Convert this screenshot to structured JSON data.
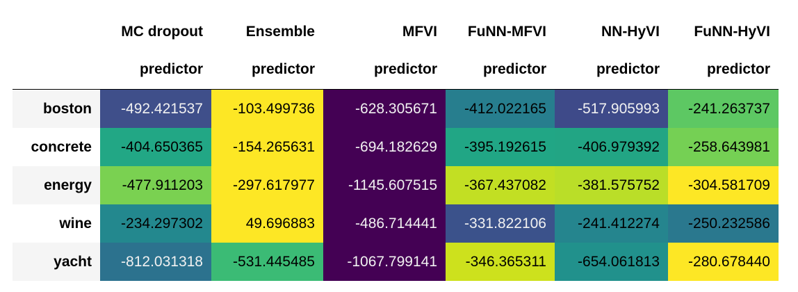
{
  "table": {
    "corner": "",
    "columns": [
      {
        "line1": "MC dropout",
        "line2": "predictor"
      },
      {
        "line1": "Ensemble",
        "line2": "predictor"
      },
      {
        "line1": "MFVI",
        "line2": "predictor"
      },
      {
        "line1": "FuNN-MFVI",
        "line2": "predictor"
      },
      {
        "line1": "NN-HyVI",
        "line2": "predictor"
      },
      {
        "line1": "FuNN-HyVI",
        "line2": "predictor"
      }
    ],
    "rows": [
      {
        "label": "boston",
        "cells": [
          {
            "text": "-492.421537",
            "bg": "#3f4f8a",
            "fg": "#f1f1f1"
          },
          {
            "text": "-103.499736",
            "bg": "#fde725",
            "fg": "#000000"
          },
          {
            "text": "-628.305671",
            "bg": "#440154",
            "fg": "#f1f1f1"
          },
          {
            "text": "-412.022165",
            "bg": "#277e8e",
            "fg": "#000000"
          },
          {
            "text": "-517.905993",
            "bg": "#3e4a89",
            "fg": "#f1f1f1"
          },
          {
            "text": "-241.263737",
            "bg": "#5dc863",
            "fg": "#000000"
          }
        ]
      },
      {
        "label": "concrete",
        "cells": [
          {
            "text": "-404.650365",
            "bg": "#22a785",
            "fg": "#000000"
          },
          {
            "text": "-154.265631",
            "bg": "#fde725",
            "fg": "#000000"
          },
          {
            "text": "-694.182629",
            "bg": "#440154",
            "fg": "#f1f1f1"
          },
          {
            "text": "-395.192615",
            "bg": "#21a685",
            "fg": "#000000"
          },
          {
            "text": "-406.979392",
            "bg": "#22a584",
            "fg": "#000000"
          },
          {
            "text": "-258.643981",
            "bg": "#75d054",
            "fg": "#000000"
          }
        ]
      },
      {
        "label": "energy",
        "cells": [
          {
            "text": "-477.911203",
            "bg": "#7ad151",
            "fg": "#000000"
          },
          {
            "text": "-297.617977",
            "bg": "#fde725",
            "fg": "#000000"
          },
          {
            "text": "-1145.607515",
            "bg": "#440154",
            "fg": "#f1f1f1"
          },
          {
            "text": "-367.437082",
            "bg": "#c2df23",
            "fg": "#000000"
          },
          {
            "text": "-381.575752",
            "bg": "#bade28",
            "fg": "#000000"
          },
          {
            "text": "-304.581709",
            "bg": "#fde725",
            "fg": "#000000"
          }
        ]
      },
      {
        "label": "wine",
        "cells": [
          {
            "text": "-234.297302",
            "bg": "#23888e",
            "fg": "#000000"
          },
          {
            "text": "49.696883",
            "bg": "#fde725",
            "fg": "#000000"
          },
          {
            "text": "-486.714441",
            "bg": "#440154",
            "fg": "#f1f1f1"
          },
          {
            "text": "-331.822106",
            "bg": "#3b528b",
            "fg": "#f1f1f1"
          },
          {
            "text": "-241.412274",
            "bg": "#25858e",
            "fg": "#000000"
          },
          {
            "text": "-250.232586",
            "bg": "#2a788e",
            "fg": "#000000"
          }
        ]
      },
      {
        "label": "yacht",
        "cells": [
          {
            "text": "-812.031318",
            "bg": "#2c728e",
            "fg": "#f1f1f1"
          },
          {
            "text": "-531.445485",
            "bg": "#3bbb75",
            "fg": "#000000"
          },
          {
            "text": "-1067.799141",
            "bg": "#440154",
            "fg": "#f1f1f1"
          },
          {
            "text": "-346.365311",
            "bg": "#cde11d",
            "fg": "#000000"
          },
          {
            "text": "-654.061813",
            "bg": "#21918c",
            "fg": "#000000"
          },
          {
            "text": "-280.678440",
            "bg": "#fde725",
            "fg": "#000000"
          }
        ]
      }
    ]
  }
}
